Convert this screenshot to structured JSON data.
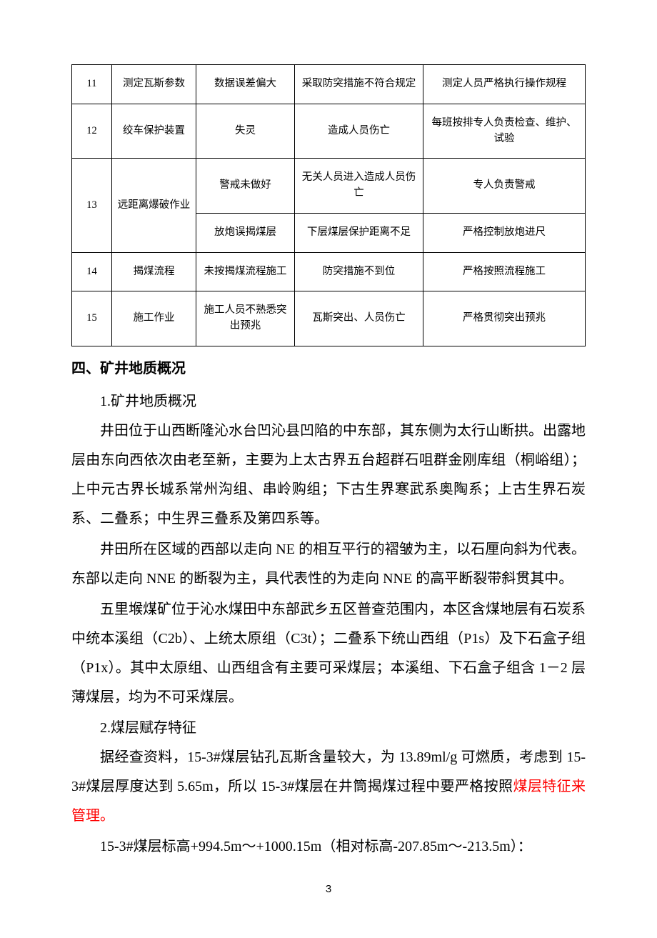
{
  "table": {
    "rows": [
      {
        "num": "11",
        "item": "测定瓦斯参数",
        "cause": "数据误差偏大",
        "consequence": "采取防突措施不符合规定",
        "measure": "测定人员严格执行操作规程",
        "rowspan_item": 1
      },
      {
        "num": "12",
        "item": "绞车保护装置",
        "cause": "失灵",
        "consequence": "造成人员伤亡",
        "measure": "每班按排专人负责检查、维护、试验",
        "rowspan_item": 1
      },
      {
        "num": "13",
        "item": "远距离爆破作业",
        "cause": "警戒未做好",
        "consequence": "无关人员进入造成人员伤亡",
        "measure": "专人负责警戒",
        "rowspan_item": 2
      },
      {
        "num": "",
        "item": "",
        "cause": "放炮误揭煤层",
        "consequence": "下层煤层保护距离不足",
        "measure": "严格控制放炮进尺",
        "rowspan_item": 0
      },
      {
        "num": "14",
        "item": "揭煤流程",
        "cause": "未按揭煤流程施工",
        "consequence": "防突措施不到位",
        "measure": "严格按照流程施工",
        "rowspan_item": 1
      },
      {
        "num": "15",
        "item": "施工作业",
        "cause": "施工人员不熟悉突出预兆",
        "consequence": "瓦斯突出、人员伤亡",
        "measure": "严格贯彻突出预兆",
        "rowspan_item": 1
      }
    ]
  },
  "section_title": "四、矿井地质概况",
  "sub1": "1.矿井地质概况",
  "p1": "井田位于山西断隆沁水台凹沁县凹陷的中东部，其东侧为太行山断拱。出露地层由东向西依次由老至新，主要为上太古界五台超群石咀群金刚库组（桐峪组）；上中元古界长城系常州沟组、串岭购组；下古生界寒武系奥陶系；上古生界石炭系、二叠系；中生界三叠系及第四系等。",
  "p2": "井田所在区域的西部以走向 NE 的相互平行的褶皱为主，以石厘向斜为代表。东部以走向 NNE 的断裂为主，具代表性的为走向 NNE 的高平断裂带斜贯其中。",
  "p3": "五里堠煤矿位于沁水煤田中东部武乡五区普查范围内，本区含煤地层有石炭系中统本溪组（C2b）、上统太原组（C3t）；二叠系下统山西组（P1s）及下石盒子组（P1x）。其中太原组、山西组含有主要可采煤层；本溪组、下石盒子组含 1－2 层薄煤层，均为不可采煤层。",
  "sub2": "2.煤层赋存特征",
  "p4a": "据经查资料，15-3#煤层钻孔瓦斯含量较大，为 13.89ml/g 可燃质，考虑到 15-3#煤层厚度达到 5.65m，所以 15-3#煤层在井筒揭煤过程中要严格按照",
  "p4b": "煤层特征来管理。",
  "p5": "15-3#煤层标高+994.5m～+1000.15m（相对标高-207.85m～-213.5m）：",
  "page_number": "3"
}
